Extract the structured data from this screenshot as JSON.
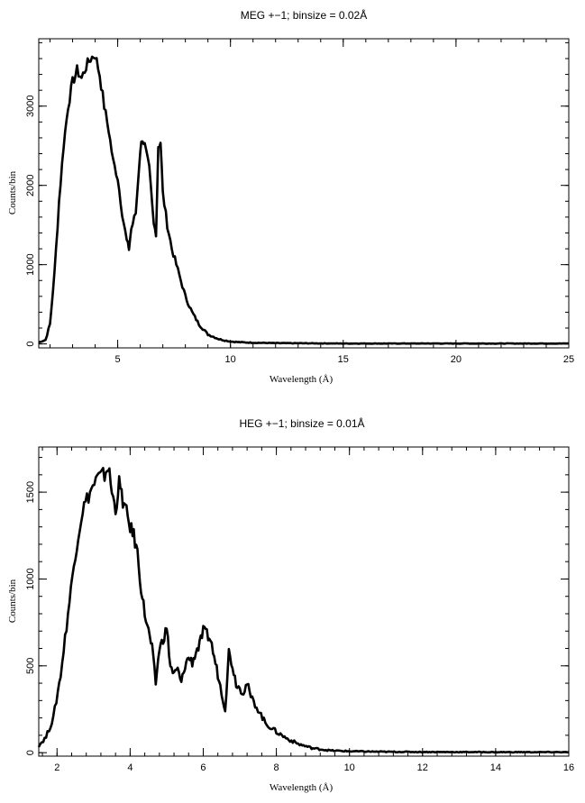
{
  "chart_data": [
    {
      "type": "line",
      "title": "MEG +−1; binsize = 0.02Å",
      "xlabel": "Wavelength (Å)",
      "ylabel": "Counts/bin",
      "xlim": [
        1.5,
        25
      ],
      "ylim": [
        -50,
        3850
      ],
      "xticks": [
        5,
        10,
        15,
        20,
        25
      ],
      "yticks": [
        0,
        1000,
        2000,
        3000
      ],
      "grid": false,
      "x": [
        1.5,
        1.8,
        2.0,
        2.2,
        2.4,
        2.6,
        2.8,
        3.0,
        3.2,
        3.4,
        3.6,
        3.8,
        4.0,
        4.2,
        4.4,
        4.6,
        4.8,
        5.0,
        5.2,
        5.4,
        5.5,
        5.6,
        5.8,
        6.0,
        6.1,
        6.2,
        6.4,
        6.6,
        6.7,
        6.8,
        6.9,
        7.0,
        7.2,
        7.4,
        7.6,
        7.8,
        8.0,
        8.3,
        8.6,
        9.0,
        9.5,
        10.0,
        10.5,
        11.0,
        12,
        15,
        20,
        25
      ],
      "y": [
        20,
        50,
        250,
        900,
        1800,
        2500,
        3000,
        3300,
        3450,
        3350,
        3500,
        3600,
        3650,
        3400,
        3000,
        2700,
        2300,
        2100,
        1650,
        1300,
        1200,
        1450,
        1650,
        2450,
        2600,
        2500,
        2200,
        1500,
        1400,
        2500,
        2550,
        1900,
        1500,
        1200,
        1000,
        800,
        600,
        400,
        250,
        120,
        60,
        30,
        20,
        15,
        10,
        5,
        5,
        5
      ]
    },
    {
      "type": "line",
      "title": "HEG +−1; binsize = 0.01Å",
      "xlabel": "Wavelength (Å)",
      "ylabel": "Counts/bin",
      "xlim": [
        1.5,
        16
      ],
      "ylim": [
        -20,
        1760
      ],
      "xticks": [
        2,
        4,
        6,
        8,
        10,
        12,
        14,
        16
      ],
      "yticks": [
        0,
        500,
        1000,
        1500
      ],
      "grid": false,
      "x": [
        1.5,
        1.7,
        1.9,
        2.1,
        2.3,
        2.5,
        2.7,
        2.9,
        3.1,
        3.3,
        3.4,
        3.5,
        3.6,
        3.7,
        3.8,
        3.9,
        4.0,
        4.1,
        4.2,
        4.3,
        4.4,
        4.5,
        4.6,
        4.7,
        4.8,
        4.9,
        5.0,
        5.1,
        5.2,
        5.3,
        5.4,
        5.5,
        5.6,
        5.7,
        5.8,
        5.9,
        6.0,
        6.1,
        6.2,
        6.3,
        6.4,
        6.5,
        6.6,
        6.7,
        6.8,
        6.9,
        7.0,
        7.1,
        7.2,
        7.3,
        7.5,
        7.7,
        8.0,
        8.3,
        8.6,
        9.0,
        9.5,
        10.0,
        11,
        12,
        14,
        16
      ],
      "y": [
        40,
        90,
        200,
        450,
        800,
        1150,
        1400,
        1500,
        1580,
        1600,
        1650,
        1500,
        1400,
        1550,
        1450,
        1380,
        1300,
        1250,
        1150,
        950,
        800,
        700,
        600,
        400,
        600,
        650,
        720,
        500,
        450,
        480,
        400,
        500,
        550,
        520,
        580,
        620,
        700,
        680,
        650,
        550,
        450,
        350,
        250,
        580,
        500,
        400,
        370,
        350,
        400,
        320,
        250,
        170,
        120,
        80,
        50,
        25,
        12,
        8,
        5,
        4,
        3,
        3
      ]
    }
  ]
}
